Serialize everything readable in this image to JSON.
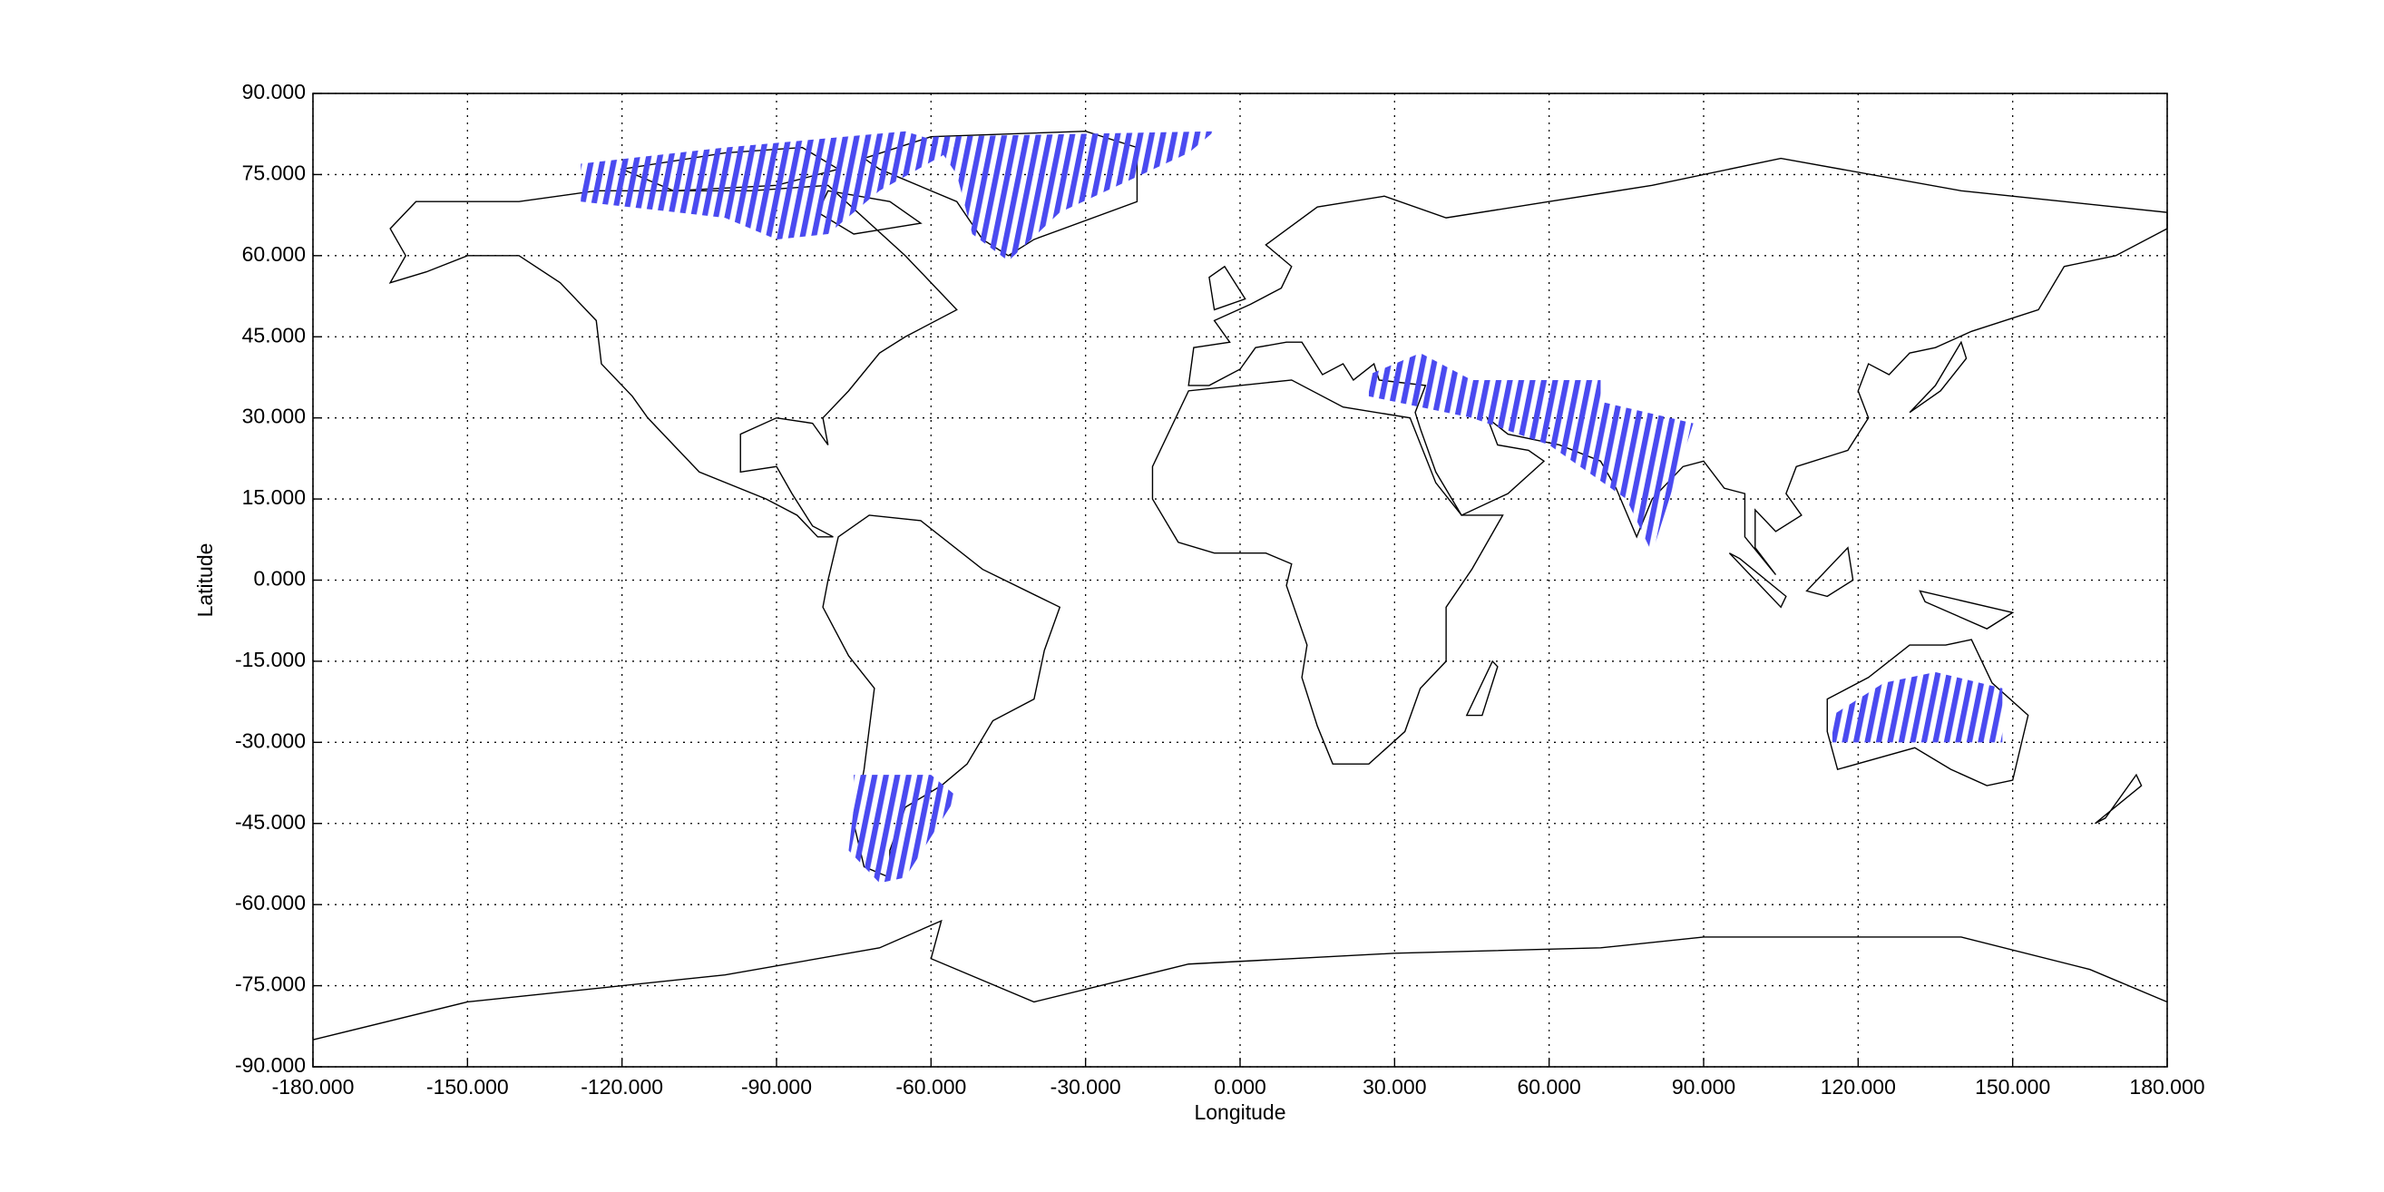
{
  "chart_data": {
    "type": "map",
    "xlabel": "Longitude",
    "ylabel": "Latitude",
    "xlim": [
      -180,
      180
    ],
    "ylim": [
      -90,
      90
    ],
    "xticks": [
      {
        "value": -180,
        "label": "-180.000"
      },
      {
        "value": -150,
        "label": "-150.000"
      },
      {
        "value": -120,
        "label": "-120.000"
      },
      {
        "value": -90,
        "label": "-90.000"
      },
      {
        "value": -60,
        "label": "-60.000"
      },
      {
        "value": -30,
        "label": "-30.000"
      },
      {
        "value": 0,
        "label": "0.000"
      },
      {
        "value": 30,
        "label": "30.000"
      },
      {
        "value": 60,
        "label": "60.000"
      },
      {
        "value": 90,
        "label": "90.000"
      },
      {
        "value": 120,
        "label": "120.000"
      },
      {
        "value": 150,
        "label": "150.000"
      },
      {
        "value": 180,
        "label": "180.000"
      }
    ],
    "yticks": [
      {
        "value": -90,
        "label": "-90.000"
      },
      {
        "value": -75,
        "label": "-75.000"
      },
      {
        "value": -60,
        "label": "-60.000"
      },
      {
        "value": -45,
        "label": "-45.000"
      },
      {
        "value": -30,
        "label": "-30.000"
      },
      {
        "value": -15,
        "label": "-15.000"
      },
      {
        "value": 0,
        "label": "0.000"
      },
      {
        "value": 15,
        "label": "15.000"
      },
      {
        "value": 30,
        "label": "30.000"
      },
      {
        "value": 45,
        "label": "45.000"
      },
      {
        "value": 60,
        "label": "60.000"
      },
      {
        "value": 75,
        "label": "75.000"
      },
      {
        "value": 90,
        "label": "90.000"
      }
    ],
    "grid": true,
    "swath_color": "#4a4af0"
  }
}
